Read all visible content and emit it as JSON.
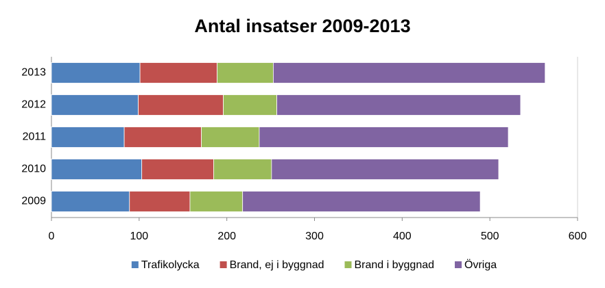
{
  "chart_data": {
    "type": "stacked-bar-horizontal",
    "title": "Antal insatser 2009-2013",
    "categories": [
      "2009",
      "2010",
      "2011",
      "2012",
      "2013"
    ],
    "series": [
      {
        "name": "Trafikolycka",
        "color": "#4f81bd",
        "values": [
          89,
          103,
          83,
          99,
          101
        ]
      },
      {
        "name": "Brand, ej i byggnad",
        "color": "#c0504d",
        "values": [
          69,
          82,
          88,
          97,
          88
        ]
      },
      {
        "name": "Brand i byggnad",
        "color": "#9bbb59",
        "values": [
          60,
          66,
          66,
          61,
          64
        ]
      },
      {
        "name": "Övriga",
        "color": "#8064a2",
        "values": [
          271,
          259,
          284,
          278,
          310
        ]
      }
    ],
    "xlim": [
      0,
      600
    ],
    "xticks": [
      0,
      100,
      200,
      300,
      400,
      500,
      600
    ]
  }
}
